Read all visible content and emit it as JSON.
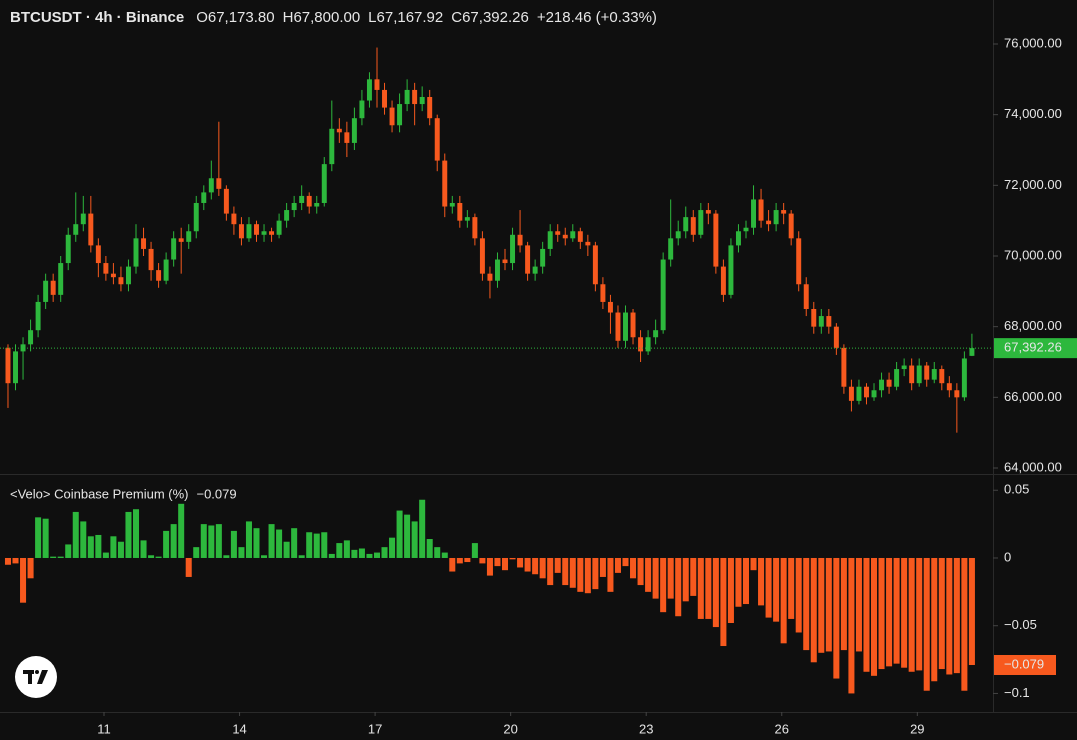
{
  "chart_data": [
    {
      "type": "candlestick",
      "title": "BTCUSDT · 4h · Binance",
      "legend": [
        {
          "key": "O",
          "value": "67,173.80"
        },
        {
          "key": "H",
          "value": "67,800.00"
        },
        {
          "key": "L",
          "value": "67,167.92"
        },
        {
          "key": "C",
          "value": "67,392.26"
        }
      ],
      "change": "+218.46 (+0.33%)",
      "up_color": "#2db83d",
      "down_color": "#f7591e",
      "ohlc": [
        [
          67400,
          67500,
          65700,
          66400
        ],
        [
          66400,
          67500,
          66200,
          67300
        ],
        [
          67300,
          67700,
          66500,
          67500
        ],
        [
          67500,
          68200,
          67300,
          67900
        ],
        [
          67900,
          68900,
          67700,
          68700
        ],
        [
          68700,
          69500,
          68500,
          69300
        ],
        [
          69300,
          69500,
          68700,
          68900
        ],
        [
          68900,
          70000,
          68700,
          69800
        ],
        [
          69800,
          70800,
          69600,
          70600
        ],
        [
          70600,
          71800,
          70400,
          70900
        ],
        [
          70900,
          71700,
          70700,
          71200
        ],
        [
          71200,
          71700,
          70100,
          70300
        ],
        [
          70300,
          70500,
          69400,
          69800
        ],
        [
          69800,
          70000,
          69300,
          69500
        ],
        [
          69500,
          69800,
          69200,
          69400
        ],
        [
          69400,
          69700,
          69000,
          69200
        ],
        [
          69200,
          69900,
          69000,
          69700
        ],
        [
          69700,
          70900,
          69500,
          70500
        ],
        [
          70500,
          70800,
          70000,
          70200
        ],
        [
          70200,
          70400,
          69300,
          69600
        ],
        [
          69600,
          69800,
          69100,
          69300
        ],
        [
          69300,
          70100,
          69200,
          69900
        ],
        [
          69900,
          70700,
          69700,
          70500
        ],
        [
          70500,
          70800,
          69500,
          70400
        ],
        [
          70400,
          70900,
          70200,
          70700
        ],
        [
          70700,
          71700,
          70500,
          71500
        ],
        [
          71500,
          72000,
          71300,
          71800
        ],
        [
          71800,
          72700,
          71600,
          72200
        ],
        [
          72200,
          73800,
          71700,
          71900
        ],
        [
          71900,
          72000,
          71000,
          71200
        ],
        [
          71200,
          71400,
          70600,
          70900
        ],
        [
          70900,
          71100,
          70300,
          70500
        ],
        [
          70500,
          71100,
          70400,
          70900
        ],
        [
          70900,
          71000,
          70400,
          70600
        ],
        [
          70600,
          70900,
          70400,
          70700
        ],
        [
          70700,
          70800,
          70400,
          70600
        ],
        [
          70600,
          71200,
          70500,
          71000
        ],
        [
          71000,
          71500,
          70800,
          71300
        ],
        [
          71300,
          71700,
          71100,
          71500
        ],
        [
          71500,
          72000,
          71300,
          71700
        ],
        [
          71700,
          71800,
          71200,
          71400
        ],
        [
          71400,
          71700,
          71200,
          71500
        ],
        [
          71500,
          72800,
          71400,
          72600
        ],
        [
          72600,
          74400,
          72400,
          73600
        ],
        [
          73600,
          73900,
          73200,
          73500
        ],
        [
          73500,
          73800,
          72800,
          73200
        ],
        [
          73200,
          74200,
          73000,
          73900
        ],
        [
          73900,
          74700,
          73700,
          74400
        ],
        [
          74400,
          75200,
          74200,
          75000
        ],
        [
          75000,
          75900,
          74200,
          74700
        ],
        [
          74700,
          74900,
          74000,
          74200
        ],
        [
          74200,
          74400,
          73500,
          73700
        ],
        [
          73700,
          74600,
          73500,
          74300
        ],
        [
          74300,
          75000,
          74100,
          74700
        ],
        [
          74700,
          74900,
          73700,
          74300
        ],
        [
          74300,
          74800,
          74100,
          74500
        ],
        [
          74500,
          74700,
          73700,
          73900
        ],
        [
          73900,
          74000,
          72400,
          72700
        ],
        [
          72700,
          72900,
          71100,
          71400
        ],
        [
          71400,
          71700,
          71200,
          71500
        ],
        [
          71500,
          71700,
          70800,
          71000
        ],
        [
          71000,
          71300,
          70800,
          71100
        ],
        [
          71100,
          71200,
          70300,
          70500
        ],
        [
          70500,
          70700,
          69300,
          69500
        ],
        [
          69500,
          69700,
          68800,
          69300
        ],
        [
          69300,
          70100,
          69100,
          69900
        ],
        [
          69900,
          70200,
          69600,
          69800
        ],
        [
          69800,
          70800,
          69600,
          70600
        ],
        [
          70600,
          71300,
          70100,
          70300
        ],
        [
          70300,
          70400,
          69300,
          69500
        ],
        [
          69500,
          69900,
          69300,
          69700
        ],
        [
          69700,
          70400,
          69500,
          70200
        ],
        [
          70200,
          70900,
          70000,
          70700
        ],
        [
          70700,
          70900,
          70400,
          70600
        ],
        [
          70600,
          70800,
          70300,
          70500
        ],
        [
          70500,
          70900,
          70400,
          70700
        ],
        [
          70700,
          70800,
          70200,
          70400
        ],
        [
          70400,
          70600,
          70000,
          70300
        ],
        [
          70300,
          70400,
          69000,
          69200
        ],
        [
          69200,
          69400,
          68500,
          68700
        ],
        [
          68700,
          68900,
          67800,
          68400
        ],
        [
          68400,
          68600,
          67400,
          67600
        ],
        [
          67600,
          68600,
          67400,
          68400
        ],
        [
          68400,
          68500,
          67500,
          67700
        ],
        [
          67700,
          67900,
          67000,
          67300
        ],
        [
          67300,
          67900,
          67200,
          67700
        ],
        [
          67700,
          68200,
          67500,
          67900
        ],
        [
          67900,
          70100,
          67800,
          69900
        ],
        [
          69900,
          71600,
          69700,
          70500
        ],
        [
          70500,
          71000,
          70300,
          70700
        ],
        [
          70700,
          71400,
          70500,
          71100
        ],
        [
          71100,
          71300,
          70400,
          70600
        ],
        [
          70600,
          71500,
          70500,
          71300
        ],
        [
          71300,
          71500,
          70900,
          71200
        ],
        [
          71200,
          71300,
          69500,
          69700
        ],
        [
          69700,
          69900,
          68700,
          68900
        ],
        [
          68900,
          70500,
          68800,
          70300
        ],
        [
          70300,
          70900,
          70100,
          70700
        ],
        [
          70700,
          71000,
          70500,
          70800
        ],
        [
          70800,
          72000,
          70600,
          71600
        ],
        [
          71600,
          71900,
          70800,
          71000
        ],
        [
          71000,
          71300,
          70700,
          70900
        ],
        [
          70900,
          71500,
          70700,
          71300
        ],
        [
          71300,
          71500,
          70900,
          71200
        ],
        [
          71200,
          71300,
          70300,
          70500
        ],
        [
          70500,
          70700,
          69000,
          69200
        ],
        [
          69200,
          69400,
          68300,
          68500
        ],
        [
          68500,
          68700,
          67800,
          68000
        ],
        [
          68000,
          68500,
          67800,
          68300
        ],
        [
          68300,
          68500,
          67800,
          68000
        ],
        [
          68000,
          68100,
          67200,
          67400
        ],
        [
          67400,
          67500,
          66100,
          66300
        ],
        [
          66300,
          66500,
          65600,
          65900
        ],
        [
          65900,
          66500,
          65800,
          66300
        ],
        [
          66300,
          66400,
          65800,
          66000
        ],
        [
          66000,
          66400,
          65900,
          66200
        ],
        [
          66200,
          66700,
          66000,
          66500
        ],
        [
          66500,
          66700,
          66100,
          66300
        ],
        [
          66300,
          67000,
          66200,
          66800
        ],
        [
          66800,
          67100,
          66600,
          66900
        ],
        [
          66900,
          67100,
          66200,
          66400
        ],
        [
          66400,
          67100,
          66300,
          66900
        ],
        [
          66900,
          67000,
          66300,
          66500
        ],
        [
          66500,
          67000,
          66400,
          66800
        ],
        [
          66800,
          66900,
          66200,
          66400
        ],
        [
          66400,
          66600,
          66000,
          66200
        ],
        [
          66200,
          66400,
          65000,
          66000
        ],
        [
          66000,
          67300,
          65900,
          67100
        ],
        [
          67173.8,
          67800,
          67167.92,
          67392.26
        ]
      ],
      "last_label": "67,392.26",
      "ylim": [
        63830,
        77245
      ],
      "yticks": [
        {
          "value": 64000,
          "label": "64,000.00"
        },
        {
          "value": 66000,
          "label": "66,000.00"
        },
        {
          "value": 68000,
          "label": "68,000.00"
        },
        {
          "value": 70000,
          "label": "70,000.00"
        },
        {
          "value": 72000,
          "label": "72,000.00"
        },
        {
          "value": 74000,
          "label": "74,000.00"
        },
        {
          "value": 76000,
          "label": "76,000.00"
        }
      ],
      "xlim": [
        -1.06,
        130.8
      ],
      "xticks": [
        {
          "value": 12.75,
          "label": "11"
        },
        {
          "value": 30.75,
          "label": "14"
        },
        {
          "value": 48.75,
          "label": "17"
        },
        {
          "value": 66.75,
          "label": "20"
        },
        {
          "value": 84.75,
          "label": "23"
        },
        {
          "value": 102.75,
          "label": "26"
        },
        {
          "value": 120.75,
          "label": "29"
        }
      ]
    },
    {
      "type": "bar",
      "title": "<Velo> Coinbase Premium (%)",
      "up_color": "#2db83d",
      "down_color": "#f7591e",
      "values": [
        -0.005,
        -0.004,
        -0.033,
        -0.015,
        0.03,
        0.029,
        0.001,
        0.001,
        0.01,
        0.034,
        0.027,
        0.016,
        0.017,
        0.004,
        0.016,
        0.012,
        0.034,
        0.036,
        0.013,
        0.002,
        0.001,
        0.02,
        0.025,
        0.04,
        -0.014,
        0.008,
        0.025,
        0.024,
        0.025,
        0.002,
        0.02,
        0.008,
        0.027,
        0.022,
        0.002,
        0.025,
        0.021,
        0.012,
        0.022,
        0.002,
        0.019,
        0.018,
        0.019,
        0.003,
        0.011,
        0.013,
        0.006,
        0.007,
        0.003,
        0.004,
        0.008,
        0.015,
        0.035,
        0.032,
        0.027,
        0.043,
        0.014,
        0.008,
        0.004,
        -0.01,
        -0.004,
        -0.003,
        0.011,
        -0.004,
        -0.013,
        -0.006,
        -0.009,
        -0.001,
        -0.007,
        -0.01,
        -0.012,
        -0.015,
        -0.02,
        -0.011,
        -0.02,
        -0.022,
        -0.025,
        -0.026,
        -0.023,
        -0.014,
        -0.025,
        -0.011,
        -0.006,
        -0.015,
        -0.02,
        -0.025,
        -0.03,
        -0.04,
        -0.03,
        -0.043,
        -0.032,
        -0.028,
        -0.045,
        -0.045,
        -0.051,
        -0.065,
        -0.048,
        -0.036,
        -0.034,
        -0.009,
        -0.035,
        -0.044,
        -0.047,
        -0.063,
        -0.045,
        -0.055,
        -0.068,
        -0.077,
        -0.07,
        -0.069,
        -0.089,
        -0.068,
        -0.1,
        -0.069,
        -0.084,
        -0.087,
        -0.082,
        -0.08,
        -0.078,
        -0.081,
        -0.084,
        -0.083,
        -0.098,
        -0.091,
        -0.082,
        -0.086,
        -0.085,
        -0.098,
        -0.079
      ],
      "last_label": "−0.079",
      "ylim": [
        -0.1137,
        0.062
      ],
      "yticks": [
        0.05,
        0,
        {
          "value": -0.05,
          "label": "−0.05"
        },
        {
          "value": -0.1,
          "label": "−0.1"
        }
      ]
    }
  ]
}
